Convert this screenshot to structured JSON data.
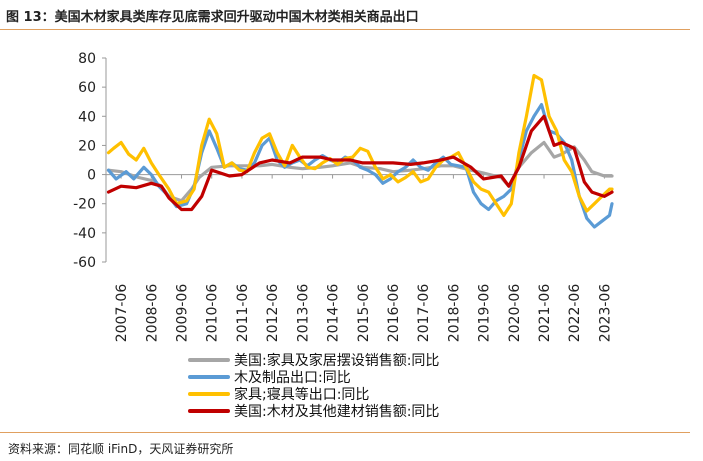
{
  "header": {
    "title": "图 13：美国木材家具类库存见底需求回升驱动中国木材类相关商品出口",
    "source": "资料来源：同花顺 iFinD，天风证券研究所"
  },
  "chart_data": {
    "type": "line",
    "ylim": [
      -60,
      80
    ],
    "yticks": [
      "80",
      "60",
      "40",
      "20",
      "0",
      "-20",
      "-40",
      "-60"
    ],
    "yvalues": [
      80,
      60,
      40,
      20,
      0,
      -20,
      -40,
      -60
    ],
    "xticks": [
      "2007-06",
      "2008-06",
      "2009-06",
      "2010-06",
      "2011-06",
      "2012-06",
      "2013-06",
      "2014-06",
      "2015-06",
      "2016-06",
      "2017-06",
      "2018-06",
      "2019-06",
      "2020-06",
      "2021-06",
      "2022-06",
      "2023-06"
    ],
    "x_start": "2006-12",
    "x_end": "2023-09",
    "grid": false,
    "legend_position": "bottom",
    "series": [
      {
        "name": "美国:家具及家居摆设销售额:同比",
        "color": "#a6a6a6",
        "points": [
          [
            "2007-01",
            3
          ],
          [
            "2007-06",
            2
          ],
          [
            "2008-01",
            -2
          ],
          [
            "2008-06",
            -4
          ],
          [
            "2008-10",
            -8
          ],
          [
            "2009-01",
            -15
          ],
          [
            "2009-06",
            -18
          ],
          [
            "2009-10",
            -10
          ],
          [
            "2010-01",
            -2
          ],
          [
            "2010-06",
            5
          ],
          [
            "2011-01",
            6
          ],
          [
            "2011-06",
            6
          ],
          [
            "2012-01",
            6
          ],
          [
            "2012-06",
            7
          ],
          [
            "2013-01",
            5
          ],
          [
            "2013-06",
            4
          ],
          [
            "2014-01",
            5
          ],
          [
            "2014-06",
            6
          ],
          [
            "2015-01",
            8
          ],
          [
            "2015-06",
            5
          ],
          [
            "2016-01",
            4
          ],
          [
            "2016-06",
            2
          ],
          [
            "2017-01",
            3
          ],
          [
            "2017-06",
            4
          ],
          [
            "2018-01",
            6
          ],
          [
            "2018-06",
            6
          ],
          [
            "2019-01",
            3
          ],
          [
            "2019-06",
            1
          ],
          [
            "2020-01",
            -2
          ],
          [
            "2020-04",
            -8
          ],
          [
            "2020-08",
            5
          ],
          [
            "2021-01",
            15
          ],
          [
            "2021-06",
            22
          ],
          [
            "2021-10",
            12
          ],
          [
            "2022-01",
            14
          ],
          [
            "2022-06",
            19
          ],
          [
            "2022-10",
            10
          ],
          [
            "2023-01",
            2
          ],
          [
            "2023-06",
            -1
          ],
          [
            "2023-09",
            -1
          ]
        ]
      },
      {
        "name": "木及制品出口:同比",
        "color": "#5b9bd5",
        "points": [
          [
            "2007-01",
            3
          ],
          [
            "2007-04",
            -3
          ],
          [
            "2007-08",
            2
          ],
          [
            "2007-11",
            -3
          ],
          [
            "2008-03",
            5
          ],
          [
            "2008-06",
            0
          ],
          [
            "2008-09",
            -8
          ],
          [
            "2009-01",
            -15
          ],
          [
            "2009-04",
            -22
          ],
          [
            "2009-08",
            -20
          ],
          [
            "2009-11",
            -8
          ],
          [
            "2010-02",
            15
          ],
          [
            "2010-05",
            30
          ],
          [
            "2010-08",
            18
          ],
          [
            "2010-11",
            5
          ],
          [
            "2011-02",
            8
          ],
          [
            "2011-05",
            4
          ],
          [
            "2011-08",
            3
          ],
          [
            "2011-11",
            8
          ],
          [
            "2012-02",
            20
          ],
          [
            "2012-05",
            25
          ],
          [
            "2012-08",
            10
          ],
          [
            "2012-11",
            5
          ],
          [
            "2013-02",
            8
          ],
          [
            "2013-05",
            10
          ],
          [
            "2013-08",
            6
          ],
          [
            "2013-11",
            10
          ],
          [
            "2014-02",
            13
          ],
          [
            "2014-05",
            10
          ],
          [
            "2014-08",
            8
          ],
          [
            "2014-11",
            12
          ],
          [
            "2015-02",
            10
          ],
          [
            "2015-05",
            5
          ],
          [
            "2015-08",
            3
          ],
          [
            "2015-11",
            0
          ],
          [
            "2016-02",
            -6
          ],
          [
            "2016-05",
            -3
          ],
          [
            "2016-08",
            2
          ],
          [
            "2016-11",
            5
          ],
          [
            "2017-02",
            10
          ],
          [
            "2017-05",
            5
          ],
          [
            "2017-08",
            3
          ],
          [
            "2017-11",
            8
          ],
          [
            "2018-02",
            12
          ],
          [
            "2018-05",
            7
          ],
          [
            "2018-08",
            6
          ],
          [
            "2018-11",
            5
          ],
          [
            "2019-02",
            -12
          ],
          [
            "2019-05",
            -20
          ],
          [
            "2019-08",
            -24
          ],
          [
            "2019-11",
            -18
          ],
          [
            "2020-02",
            -15
          ],
          [
            "2020-05",
            -10
          ],
          [
            "2020-08",
            10
          ],
          [
            "2020-11",
            30
          ],
          [
            "2021-02",
            40
          ],
          [
            "2021-05",
            48
          ],
          [
            "2021-08",
            30
          ],
          [
            "2021-11",
            28
          ],
          [
            "2022-02",
            22
          ],
          [
            "2022-05",
            10
          ],
          [
            "2022-08",
            -15
          ],
          [
            "2022-11",
            -30
          ],
          [
            "2023-02",
            -36
          ],
          [
            "2023-05",
            -32
          ],
          [
            "2023-08",
            -28
          ],
          [
            "2023-09",
            -20
          ]
        ]
      },
      {
        "name": "家具;寝具等出口:同比",
        "color": "#ffc000",
        "points": [
          [
            "2007-01",
            15
          ],
          [
            "2007-03",
            18
          ],
          [
            "2007-06",
            22
          ],
          [
            "2007-09",
            14
          ],
          [
            "2007-12",
            10
          ],
          [
            "2008-03",
            18
          ],
          [
            "2008-06",
            8
          ],
          [
            "2008-09",
            0
          ],
          [
            "2009-01",
            -10
          ],
          [
            "2009-04",
            -20
          ],
          [
            "2009-08",
            -18
          ],
          [
            "2009-11",
            -10
          ],
          [
            "2010-02",
            20
          ],
          [
            "2010-05",
            38
          ],
          [
            "2010-08",
            28
          ],
          [
            "2010-11",
            5
          ],
          [
            "2011-02",
            8
          ],
          [
            "2011-05",
            3
          ],
          [
            "2011-08",
            2
          ],
          [
            "2011-11",
            15
          ],
          [
            "2012-02",
            25
          ],
          [
            "2012-05",
            28
          ],
          [
            "2012-08",
            15
          ],
          [
            "2012-11",
            6
          ],
          [
            "2013-02",
            20
          ],
          [
            "2013-05",
            12
          ],
          [
            "2013-08",
            5
          ],
          [
            "2013-11",
            4
          ],
          [
            "2014-02",
            8
          ],
          [
            "2014-05",
            11
          ],
          [
            "2014-08",
            7
          ],
          [
            "2014-11",
            11
          ],
          [
            "2015-02",
            12
          ],
          [
            "2015-05",
            18
          ],
          [
            "2015-08",
            16
          ],
          [
            "2015-11",
            5
          ],
          [
            "2016-02",
            -3
          ],
          [
            "2016-05",
            0
          ],
          [
            "2016-08",
            -5
          ],
          [
            "2016-11",
            -2
          ],
          [
            "2017-02",
            2
          ],
          [
            "2017-05",
            -5
          ],
          [
            "2017-08",
            -3
          ],
          [
            "2017-11",
            5
          ],
          [
            "2018-02",
            10
          ],
          [
            "2018-05",
            12
          ],
          [
            "2018-08",
            15
          ],
          [
            "2018-11",
            5
          ],
          [
            "2019-02",
            -5
          ],
          [
            "2019-05",
            -10
          ],
          [
            "2019-08",
            -12
          ],
          [
            "2019-11",
            -20
          ],
          [
            "2020-02",
            -28
          ],
          [
            "2020-05",
            -20
          ],
          [
            "2020-08",
            15
          ],
          [
            "2020-11",
            40
          ],
          [
            "2021-02",
            68
          ],
          [
            "2021-05",
            65
          ],
          [
            "2021-08",
            40
          ],
          [
            "2021-11",
            30
          ],
          [
            "2022-02",
            10
          ],
          [
            "2022-05",
            2
          ],
          [
            "2022-08",
            -15
          ],
          [
            "2022-11",
            -25
          ],
          [
            "2023-02",
            -20
          ],
          [
            "2023-05",
            -15
          ],
          [
            "2023-08",
            -10
          ],
          [
            "2023-09",
            -10
          ]
        ]
      },
      {
        "name": "美国:木材及其他建材销售额:同比",
        "color": "#c00000",
        "points": [
          [
            "2007-01",
            -12
          ],
          [
            "2007-06",
            -8
          ],
          [
            "2007-12",
            -9
          ],
          [
            "2008-06",
            -6
          ],
          [
            "2008-10",
            -8
          ],
          [
            "2009-01",
            -16
          ],
          [
            "2009-06",
            -24
          ],
          [
            "2009-10",
            -24
          ],
          [
            "2010-02",
            -15
          ],
          [
            "2010-06",
            3
          ],
          [
            "2011-01",
            -1
          ],
          [
            "2011-06",
            0
          ],
          [
            "2012-01",
            8
          ],
          [
            "2012-06",
            10
          ],
          [
            "2013-01",
            8
          ],
          [
            "2013-06",
            12
          ],
          [
            "2014-01",
            12
          ],
          [
            "2014-06",
            10
          ],
          [
            "2015-01",
            10
          ],
          [
            "2015-06",
            8
          ],
          [
            "2016-01",
            8
          ],
          [
            "2016-06",
            8
          ],
          [
            "2017-01",
            7
          ],
          [
            "2017-06",
            8
          ],
          [
            "2018-01",
            10
          ],
          [
            "2018-06",
            12
          ],
          [
            "2019-01",
            5
          ],
          [
            "2019-06",
            -3
          ],
          [
            "2020-01",
            -1
          ],
          [
            "2020-04",
            -8
          ],
          [
            "2020-08",
            5
          ],
          [
            "2021-01",
            30
          ],
          [
            "2021-06",
            40
          ],
          [
            "2021-10",
            20
          ],
          [
            "2022-01",
            22
          ],
          [
            "2022-06",
            18
          ],
          [
            "2022-10",
            -5
          ],
          [
            "2023-01",
            -12
          ],
          [
            "2023-06",
            -15
          ],
          [
            "2023-09",
            -12
          ]
        ]
      }
    ]
  }
}
